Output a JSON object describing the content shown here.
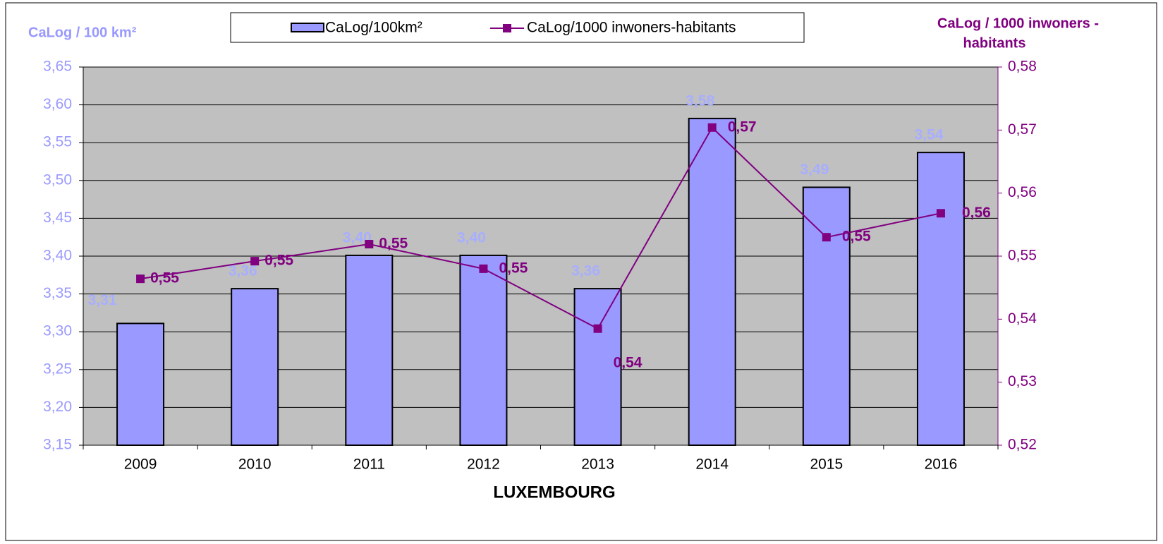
{
  "chart_data": {
    "type": "bar_line",
    "xlabel": "LUXEMBOURG",
    "ylabel": "CaLog / 100 km²",
    "y2label": [
      "CaLog / 1000 inwoners -",
      "habitants"
    ],
    "categories": [
      "2009",
      "2010",
      "2011",
      "2012",
      "2013",
      "2014",
      "2015",
      "2016"
    ],
    "series": [
      {
        "name": "CaLog/100km²",
        "type": "bar",
        "color": "#9999ff",
        "values": [
          3.311,
          3.357,
          3.401,
          3.401,
          3.357,
          3.582,
          3.491,
          3.537
        ],
        "value_labels": [
          "3,31",
          "3,36",
          "3,40",
          "3,40",
          "3,36",
          "3,58",
          "3,49",
          "3,54"
        ]
      },
      {
        "name": "CaLog/1000 inwoners-habitants",
        "type": "line",
        "color": "#800080",
        "axis": "y2",
        "values": [
          0.5464,
          0.5492,
          0.5519,
          0.548,
          0.5385,
          0.5704,
          0.553,
          0.5568
        ],
        "value_labels": [
          "0,55",
          "0,55",
          "0,55",
          "0,55",
          "0,54",
          "0,57",
          "0,55",
          "0,56"
        ]
      }
    ],
    "ylim": [
      3.15,
      3.65
    ],
    "yticks": [
      {
        "value": 3.15,
        "label": "3,15"
      },
      {
        "value": 3.2,
        "label": "3,20"
      },
      {
        "value": 3.25,
        "label": "3,25"
      },
      {
        "value": 3.3,
        "label": "3,30"
      },
      {
        "value": 3.35,
        "label": "3,35"
      },
      {
        "value": 3.4,
        "label": "3,40"
      },
      {
        "value": 3.45,
        "label": "3,45"
      },
      {
        "value": 3.5,
        "label": "3,50"
      },
      {
        "value": 3.55,
        "label": "3,55"
      },
      {
        "value": 3.6,
        "label": "3,60"
      },
      {
        "value": 3.65,
        "label": "3,65"
      }
    ],
    "y2lim": [
      0.52,
      0.58
    ],
    "y2ticks": [
      {
        "value": 0.52,
        "label": "0,52"
      },
      {
        "value": 0.53,
        "label": "0,53"
      },
      {
        "value": 0.54,
        "label": "0,54"
      },
      {
        "value": 0.55,
        "label": "0,55"
      },
      {
        "value": 0.56,
        "label": "0,56"
      },
      {
        "value": 0.57,
        "label": "0,57"
      },
      {
        "value": 0.58,
        "label": "0,58"
      }
    ],
    "grid": true
  }
}
